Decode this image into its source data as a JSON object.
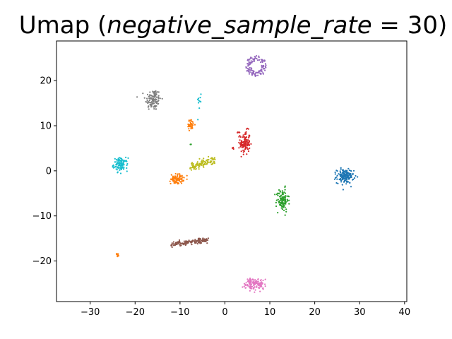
{
  "chart_data": {
    "type": "scatter",
    "title_prefix": "Umap (",
    "title_math": "negative_sample_rate",
    "title_suffix": " = 30)",
    "xlabel": "",
    "ylabel": "",
    "xlim": [
      -37.5,
      40.5
    ],
    "ylim": [
      -29,
      28.8
    ],
    "xticks": [
      -30,
      -20,
      -10,
      0,
      10,
      20,
      30,
      40
    ],
    "yticks": [
      -20,
      -10,
      0,
      10,
      20
    ],
    "grid": false,
    "legend": "none",
    "clusters": [
      {
        "color": "#9467bd",
        "cx": 7.0,
        "cy": 23.2,
        "rx": 2.4,
        "ry": 2.4,
        "n": 120,
        "shape": "ring"
      },
      {
        "color": "#7f7f7f",
        "cx": -16.0,
        "cy": 15.8,
        "rx": 1.6,
        "ry": 2.2,
        "n": 110,
        "shape": "blob"
      },
      {
        "color": "#17becf",
        "cx": -5.5,
        "cy": 15.5,
        "rx": 0.6,
        "ry": 1.8,
        "n": 10,
        "shape": "blob"
      },
      {
        "color": "#d62728",
        "cx": 4.5,
        "cy": 6.2,
        "rx": 1.0,
        "ry": 2.4,
        "n": 110,
        "shape": "blob"
      },
      {
        "color": "#ff7f0e",
        "cx": -7.6,
        "cy": 10.2,
        "rx": 0.8,
        "ry": 1.0,
        "n": 40,
        "shape": "blob"
      },
      {
        "color": "#bcbd22",
        "cx": -5.0,
        "cy": 1.6,
        "rx": 2.8,
        "ry": 1.5,
        "n": 120,
        "shape": "diag"
      },
      {
        "color": "#17becf",
        "cx": -23.2,
        "cy": 1.4,
        "rx": 1.4,
        "ry": 1.3,
        "n": 110,
        "shape": "blob"
      },
      {
        "color": "#ff7f0e",
        "cx": -10.6,
        "cy": -1.8,
        "rx": 1.3,
        "ry": 1.0,
        "n": 90,
        "shape": "blob"
      },
      {
        "color": "#1f77b4",
        "cx": 26.8,
        "cy": -1.2,
        "rx": 1.7,
        "ry": 1.4,
        "n": 160,
        "shape": "blob"
      },
      {
        "color": "#2ca02c",
        "cx": 12.8,
        "cy": -6.5,
        "rx": 1.2,
        "ry": 2.3,
        "n": 110,
        "shape": "blob"
      },
      {
        "color": "#8c564b",
        "cx": -7.8,
        "cy": -15.8,
        "rx": 4.2,
        "ry": 1.0,
        "n": 130,
        "shape": "diag"
      },
      {
        "color": "#ff7f0e",
        "cx": -24.0,
        "cy": -18.6,
        "rx": 0.4,
        "ry": 0.3,
        "n": 10,
        "shape": "blob"
      },
      {
        "color": "#e377c2",
        "cx": 6.5,
        "cy": -25.0,
        "rx": 2.2,
        "ry": 1.3,
        "n": 130,
        "shape": "blob"
      },
      {
        "color": "#2ca02c",
        "cx": -7.6,
        "cy": 5.9,
        "rx": 0.1,
        "ry": 0.1,
        "n": 3,
        "shape": "blob"
      },
      {
        "color": "#d62728",
        "cx": 1.8,
        "cy": 5.0,
        "rx": 0.2,
        "ry": 0.2,
        "n": 4,
        "shape": "blob"
      },
      {
        "color": "#d62728",
        "cx": 3.0,
        "cy": 8.5,
        "rx": 0.4,
        "ry": 0.2,
        "n": 6,
        "shape": "blob"
      }
    ]
  }
}
